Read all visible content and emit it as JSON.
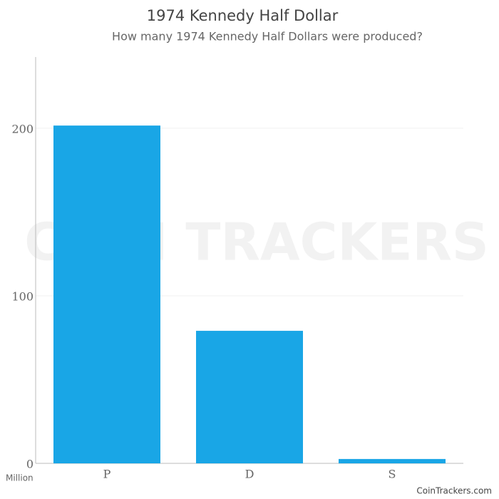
{
  "chart_data": {
    "type": "bar",
    "title": "1974 Kennedy Half Dollar",
    "subtitle": "How many 1974 Kennedy Half Dollars were produced?",
    "categories": [
      "P",
      "D",
      "S"
    ],
    "values": [
      201.6,
      79.1,
      2.6
    ],
    "color": "#19a6e6",
    "ylim": [
      0,
      242.5
    ],
    "yticks": [
      0,
      100,
      200
    ],
    "grid": true,
    "y_unit": "Million",
    "watermark": "COIN TRACKERS",
    "credit": "CoinTrackers.com"
  }
}
